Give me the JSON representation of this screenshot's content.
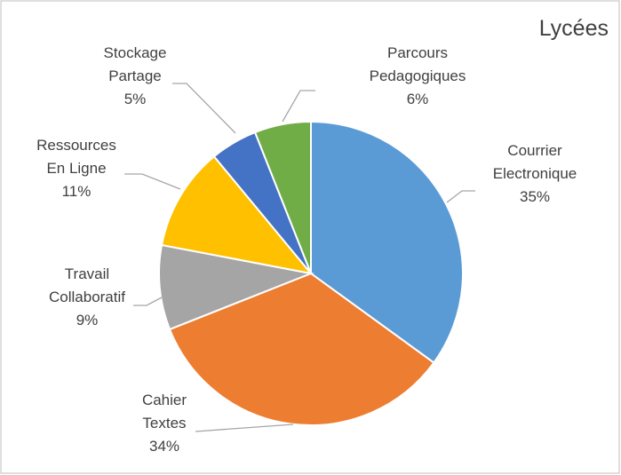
{
  "chart_data": {
    "type": "pie",
    "title": "Lycées",
    "categories": [
      "Courrier Electronique",
      "Cahier Textes",
      "Travail Collaboratif",
      "Ressources En Ligne",
      "Stockage Partage",
      "Parcours Pedagogiques"
    ],
    "values": [
      35,
      34,
      9,
      11,
      5,
      6
    ],
    "value_labels": [
      "35%",
      "34%",
      "9%",
      "11%",
      "5%",
      "6%"
    ],
    "colors": [
      "#5b9bd5",
      "#ed7d31",
      "#a5a5a5",
      "#ffc000",
      "#4472c4",
      "#70ad47"
    ]
  }
}
